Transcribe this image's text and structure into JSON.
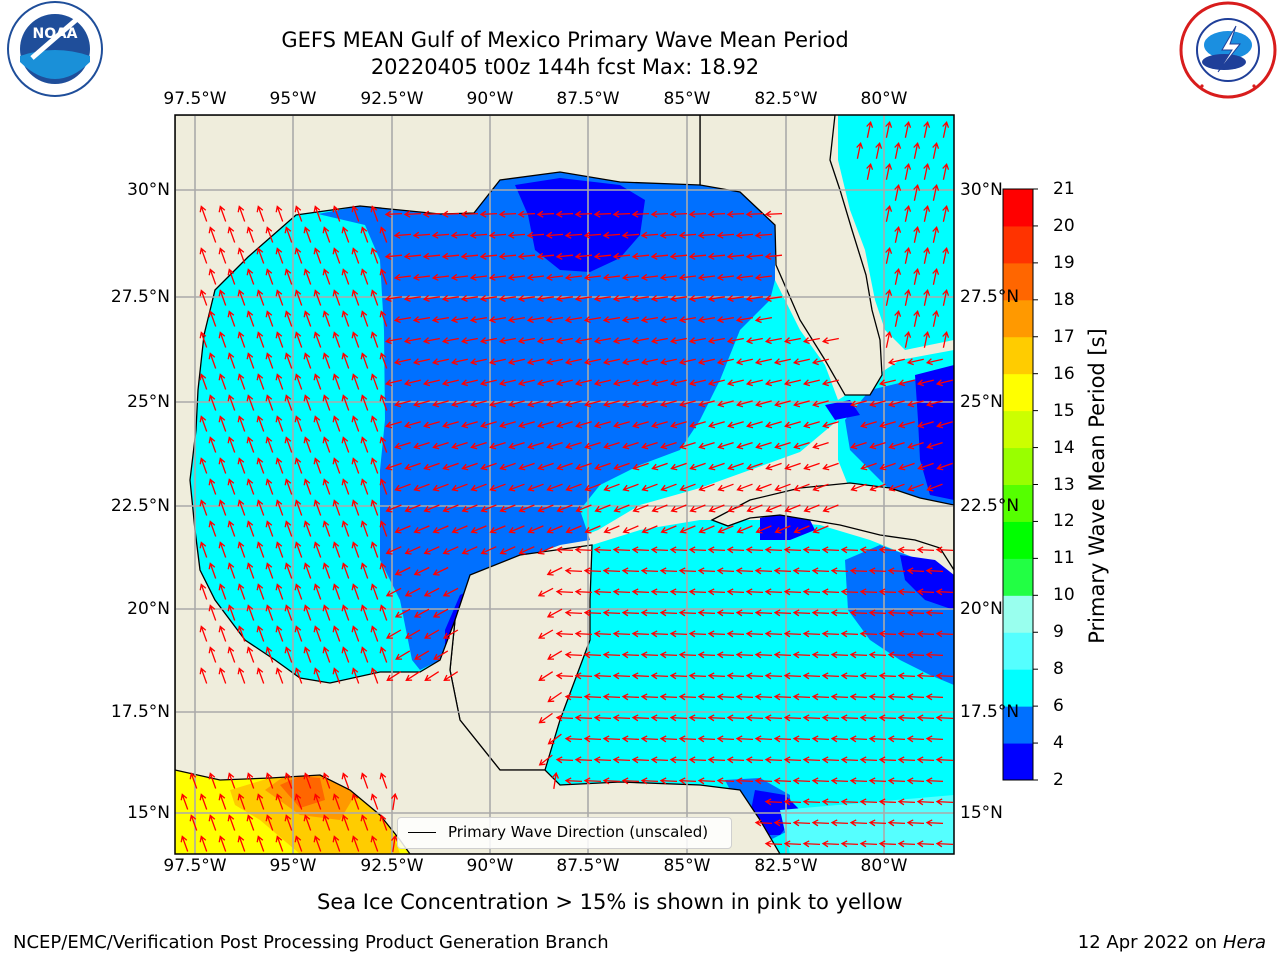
{
  "title": {
    "line1": "GEFS MEAN Gulf of Mexico Primary Wave Mean Period",
    "line2": "20220405 t00z 144h fcst   Max: 18.92"
  },
  "logos": {
    "left": {
      "text": "NOAA",
      "ring_text": "NATIONAL OCEANIC AND ATMOSPHERIC ADMINISTRATION · U.S. DEPARTMENT OF COMMERCE",
      "color": "#1f4e9a"
    },
    "right": {
      "ring_text": "NATIONAL WEATHER SERVICE",
      "color": "#d81c1c"
    }
  },
  "map": {
    "lon_ticks": [
      "97.5°W",
      "95°W",
      "92.5°W",
      "90°W",
      "87.5°W",
      "85°W",
      "82.5°W",
      "80°W"
    ],
    "lat_ticks": [
      "30°N",
      "27.5°N",
      "25°N",
      "22.5°N",
      "20°N",
      "17.5°N",
      "15°N"
    ],
    "land_color": "#efeddc",
    "arrow_color": "#ff0000",
    "legend_label": "Primary Wave Direction (unscaled)"
  },
  "colorbar": {
    "label": "Primary Wave Mean Period [s]",
    "ticks": [
      "2",
      "4",
      "6",
      "8",
      "9",
      "10",
      "11",
      "12",
      "13",
      "14",
      "15",
      "16",
      "17",
      "18",
      "19",
      "20",
      "21"
    ],
    "colors": [
      "#0000ff",
      "#0070ff",
      "#00ffff",
      "#55ffff",
      "#99ffee",
      "#22ff44",
      "#00ff00",
      "#55ff00",
      "#99ff00",
      "#ccff00",
      "#ffff00",
      "#ffcc00",
      "#ff9900",
      "#ff6600",
      "#ff3300",
      "#ff0000"
    ]
  },
  "note": "Sea Ice Concentration > 15% is shown in pink to yellow",
  "footer": {
    "left": "NCEP/EMC/Verification Post Processing Product Generation Branch",
    "date": "12 Apr 2022 on ",
    "machine": "Hera"
  }
}
